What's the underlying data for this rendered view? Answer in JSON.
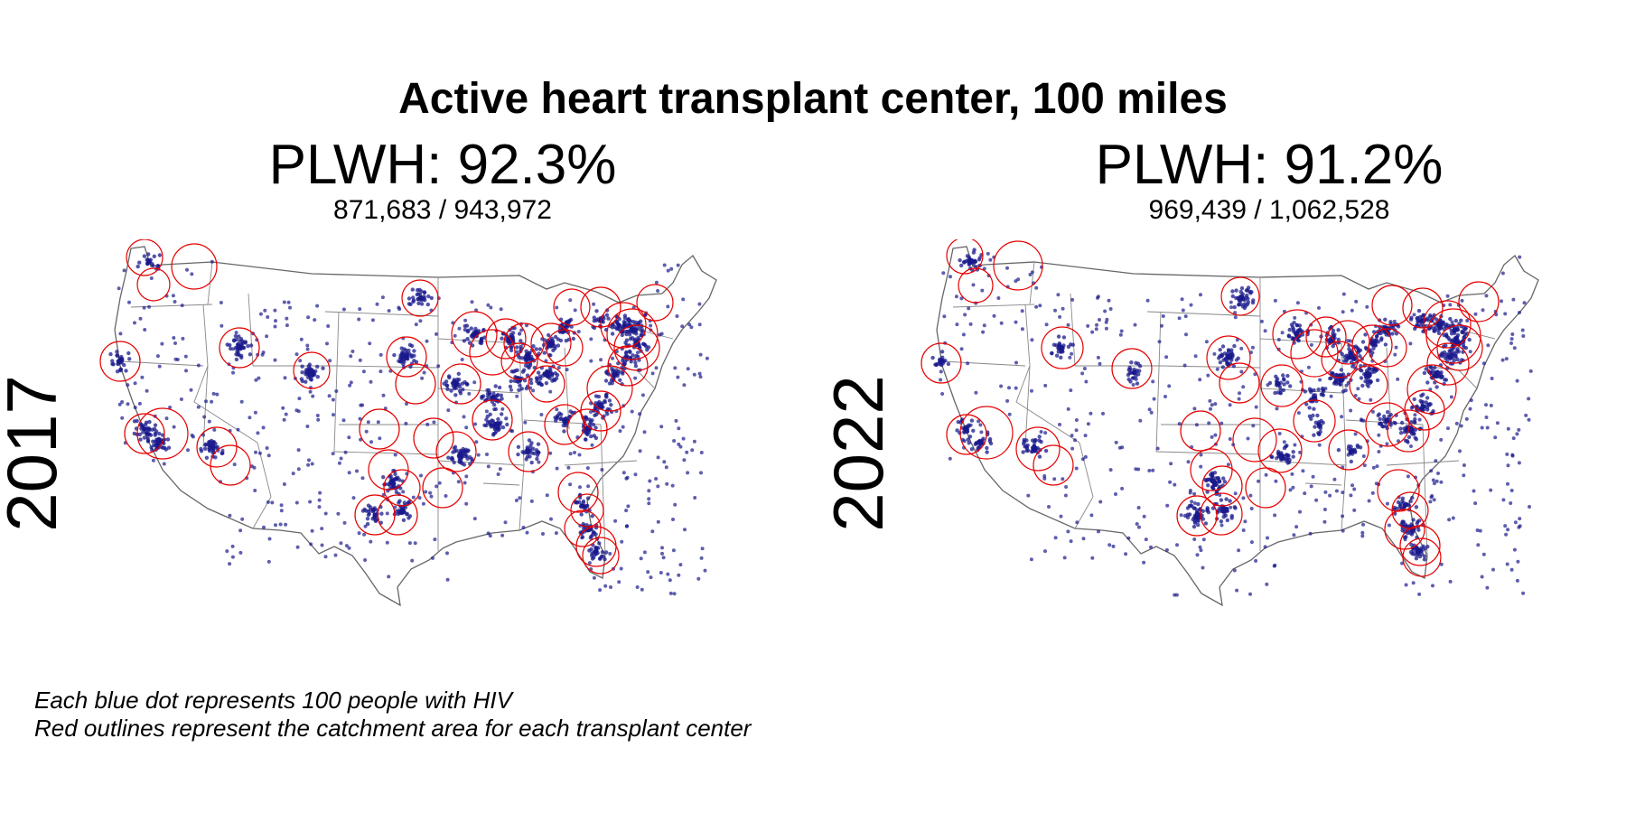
{
  "title": "Active heart transplant center, 100 miles",
  "panels": [
    {
      "year": "2017",
      "percent_label": "PLWH: 92.3%",
      "fraction_label": "871,683 / 943,972",
      "covered": 871683,
      "total": 943972
    },
    {
      "year": "2022",
      "percent_label": "PLWH: 91.2%",
      "fraction_label": "969,439 / 1,062,528",
      "covered": 969439,
      "total": 1062528
    }
  ],
  "legend": {
    "dot_note": "Each blue dot represents 100 people with HIV",
    "outline_note": "Red outlines represent the catchment area for each transplant center"
  },
  "colors": {
    "dots": "#1a1a8c",
    "catchment": "#e60000",
    "state_borders": "#666666"
  }
}
